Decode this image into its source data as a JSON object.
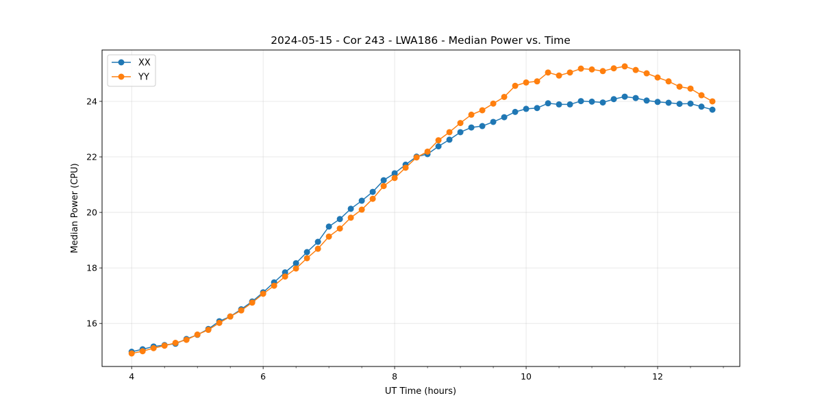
{
  "chart_data": {
    "type": "line",
    "title": "2024-05-15 - Cor 243 - LWA186 - Median Power vs. Time",
    "xlabel": "UT Time (hours)",
    "ylabel": "Median Power (CPU)",
    "xlim": [
      3.55,
      13.25
    ],
    "ylim": [
      14.45,
      25.85
    ],
    "xticks": [
      4,
      6,
      8,
      10,
      12
    ],
    "xtick_labels": [
      "4",
      "6",
      "8",
      "10",
      "12"
    ],
    "yticks": [
      16,
      18,
      20,
      22,
      24
    ],
    "ytick_labels": [
      "16",
      "18",
      "20",
      "22",
      "24"
    ],
    "grid": true,
    "legend_position": "top-left",
    "x": [
      4.0,
      4.1667,
      4.3333,
      4.5,
      4.6667,
      4.8333,
      5.0,
      5.1667,
      5.3333,
      5.5,
      5.6667,
      5.8333,
      6.0,
      6.1667,
      6.3333,
      6.5,
      6.6667,
      6.8333,
      7.0,
      7.1667,
      7.3333,
      7.5,
      7.6667,
      7.8333,
      8.0,
      8.1667,
      8.3333,
      8.5,
      8.6667,
      8.8333,
      9.0,
      9.1667,
      9.3333,
      9.5,
      9.6667,
      9.8333,
      10.0,
      10.1667,
      10.3333,
      10.5,
      10.6667,
      10.8333,
      11.0,
      11.1667,
      11.3333,
      11.5,
      11.6667,
      11.8333,
      12.0,
      12.1667,
      12.3333,
      12.5,
      12.6667,
      12.8333
    ],
    "series": [
      {
        "name": "XX",
        "color": "#1f77b4",
        "values": [
          14.98,
          15.07,
          15.17,
          15.22,
          15.27,
          15.44,
          15.59,
          15.8,
          16.08,
          16.25,
          16.51,
          16.79,
          17.12,
          17.48,
          17.84,
          18.17,
          18.57,
          18.94,
          19.49,
          19.76,
          20.13,
          20.42,
          20.74,
          21.16,
          21.41,
          21.72,
          22.01,
          22.1,
          22.38,
          22.62,
          22.89,
          23.06,
          23.11,
          23.26,
          23.43,
          23.62,
          23.73,
          23.76,
          23.93,
          23.89,
          23.89,
          24.01,
          23.99,
          23.96,
          24.08,
          24.17,
          24.12,
          24.03,
          23.98,
          23.95,
          23.91,
          23.92,
          23.81,
          23.7
        ]
      },
      {
        "name": "YY",
        "color": "#ff7f0e",
        "values": [
          14.92,
          15.0,
          15.11,
          15.2,
          15.3,
          15.41,
          15.6,
          15.77,
          16.02,
          16.25,
          16.47,
          16.75,
          17.07,
          17.36,
          17.69,
          17.98,
          18.35,
          18.69,
          19.13,
          19.42,
          19.81,
          20.1,
          20.49,
          20.95,
          21.24,
          21.61,
          21.98,
          22.19,
          22.6,
          22.89,
          23.22,
          23.52,
          23.68,
          23.92,
          24.16,
          24.56,
          24.68,
          24.72,
          25.04,
          24.93,
          25.04,
          25.18,
          25.15,
          25.09,
          25.19,
          25.26,
          25.13,
          25.01,
          24.86,
          24.72,
          24.53,
          24.46,
          24.22,
          24.0
        ]
      }
    ]
  }
}
